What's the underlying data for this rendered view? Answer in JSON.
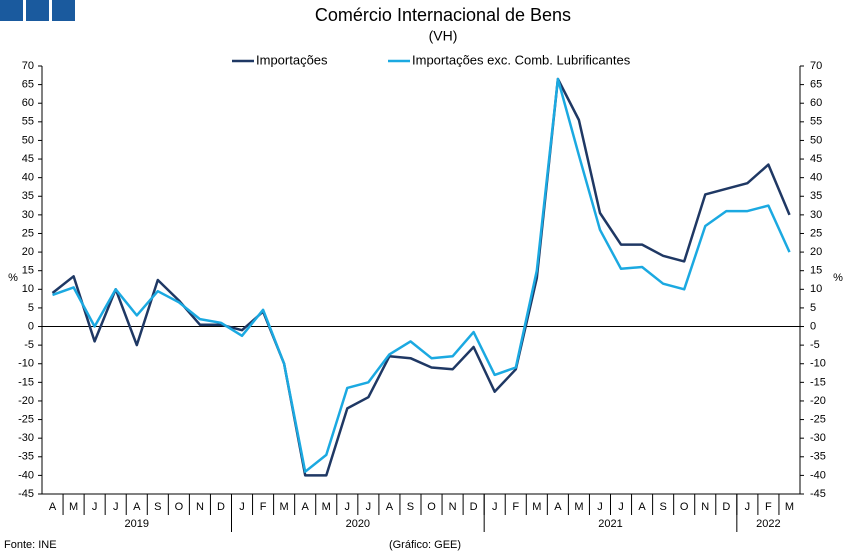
{
  "chart_data": {
    "type": "line",
    "title": "Comércio Internacional de Bens",
    "subtitle": "(VH)",
    "y_label": "%",
    "source": "Fonte: INE",
    "credit": "(Gráfico: GEE)",
    "categories": [
      "A",
      "M",
      "J",
      "J",
      "A",
      "S",
      "O",
      "N",
      "D",
      "J",
      "F",
      "M",
      "A",
      "M",
      "J",
      "J",
      "A",
      "S",
      "O",
      "N",
      "D",
      "J",
      "F",
      "M",
      "A",
      "M",
      "J",
      "J",
      "A",
      "S",
      "O",
      "N",
      "D",
      "J",
      "F",
      "M"
    ],
    "years": [
      "2019",
      "2020",
      "2021",
      "2022"
    ],
    "series": [
      {
        "name": "Importações",
        "color": "#1f3864",
        "values": [
          9,
          13.5,
          -4,
          10,
          -5,
          12.5,
          7,
          0.5,
          0.5,
          -1,
          4,
          -10,
          -40,
          -40,
          -22,
          -19,
          -8,
          -8.5,
          -11,
          -11.5,
          -5.5,
          -17.5,
          -11.5,
          13,
          66.5,
          55.5,
          30.5,
          22,
          22,
          19,
          17.5,
          35.5,
          37,
          38.5,
          43.5,
          30
        ]
      },
      {
        "name": "Importações exc. Comb. Lubrificantes",
        "color": "#1ba9e1",
        "values": [
          8.5,
          10.5,
          0,
          10,
          3,
          9.5,
          6.5,
          2,
          1,
          -2.5,
          4.5,
          -10,
          -39,
          -34.5,
          -16.5,
          -15,
          -7.5,
          -4,
          -8.5,
          -8,
          -1.5,
          -13,
          -11,
          15,
          66.5,
          46,
          26,
          15.5,
          16,
          11.5,
          10,
          27,
          31,
          31,
          32.5,
          20
        ]
      }
    ],
    "ylim": [
      -45,
      70
    ],
    "yticks": [
      -45,
      -40,
      -35,
      -30,
      -25,
      -20,
      -15,
      -10,
      -5,
      0,
      5,
      10,
      15,
      20,
      25,
      30,
      35,
      40,
      45,
      50,
      55,
      60,
      65,
      70
    ],
    "y2lim": [
      -45,
      70
    ],
    "y2ticks": [
      -45,
      -40,
      -35,
      -30,
      -25,
      -20,
      -15,
      -10,
      -5,
      0,
      5,
      10,
      15,
      20,
      25,
      30,
      35,
      40,
      45,
      50,
      55,
      60,
      65,
      70
    ]
  }
}
